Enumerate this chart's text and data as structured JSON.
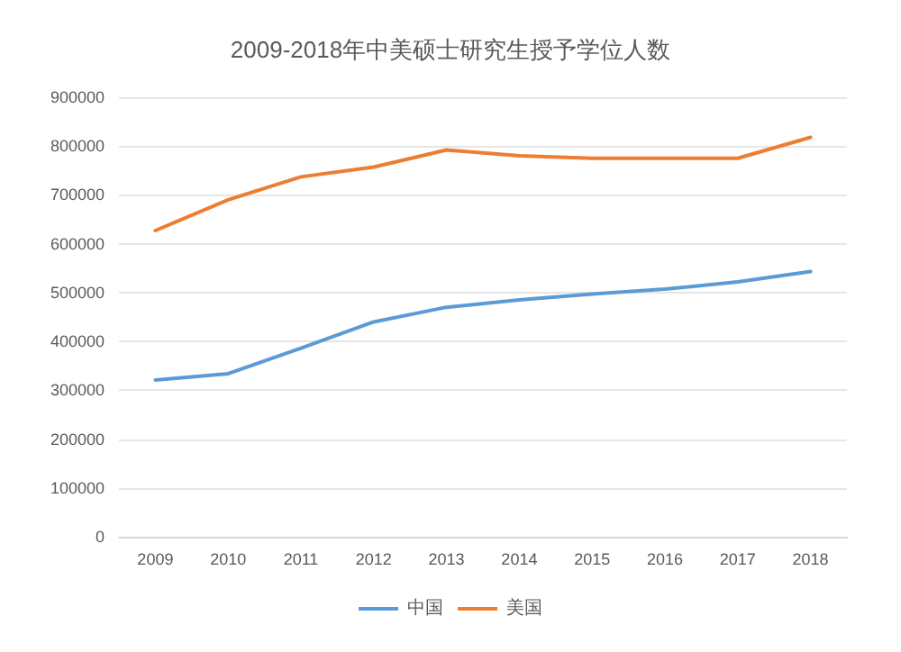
{
  "chart_data": {
    "type": "line",
    "title": "2009-2018年中美硕士研究生授予学位人数",
    "categories": [
      "2009",
      "2010",
      "2011",
      "2012",
      "2013",
      "2014",
      "2015",
      "2016",
      "2017",
      "2018"
    ],
    "series": [
      {
        "name": "中国",
        "color": "#5b9bd5",
        "values": [
          321000,
          334000,
          386000,
          440000,
          470000,
          485000,
          497000,
          507000,
          522000,
          543000
        ]
      },
      {
        "name": "美国",
        "color": "#ed7d31",
        "values": [
          627000,
          690000,
          737000,
          757000,
          792000,
          780000,
          775000,
          775000,
          775000,
          818000
        ]
      }
    ],
    "ylim": [
      0,
      900000
    ],
    "yticks": [
      0,
      100000,
      200000,
      300000,
      400000,
      500000,
      600000,
      700000,
      800000,
      900000
    ],
    "grid": "y",
    "legend": "bottom",
    "marker": "none",
    "line_style": "solid"
  }
}
